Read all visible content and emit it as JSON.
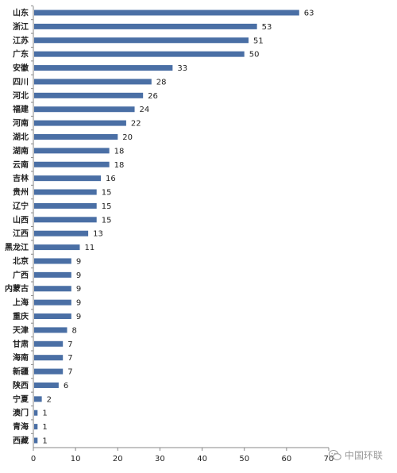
{
  "chart_data": {
    "type": "bar",
    "orientation": "horizontal",
    "categories": [
      "山东",
      "浙江",
      "江苏",
      "广东",
      "安徽",
      "四川",
      "河北",
      "福建",
      "河南",
      "湖北",
      "湖南",
      "云南",
      "吉林",
      "贵州",
      "辽宁",
      "山西",
      "江西",
      "黑龙江",
      "北京",
      "广西",
      "内蒙古",
      "上海",
      "重庆",
      "天津",
      "甘肃",
      "海南",
      "新疆",
      "陕西",
      "宁夏",
      "澳门",
      "青海",
      "西藏"
    ],
    "values": [
      63,
      53,
      51,
      50,
      33,
      28,
      26,
      24,
      22,
      20,
      18,
      18,
      16,
      15,
      15,
      15,
      13,
      11,
      9,
      9,
      9,
      9,
      9,
      8,
      7,
      7,
      7,
      6,
      2,
      1,
      1,
      1
    ],
    "xticks": [
      0,
      10,
      20,
      30,
      40,
      50,
      60,
      70
    ],
    "xlim": [
      0,
      70
    ],
    "title": "",
    "xlabel": "",
    "ylabel": "",
    "grid": false,
    "bar_color": "#4a6fa5"
  },
  "watermark": {
    "text": "中国环联",
    "icon": "wechat-icon"
  }
}
